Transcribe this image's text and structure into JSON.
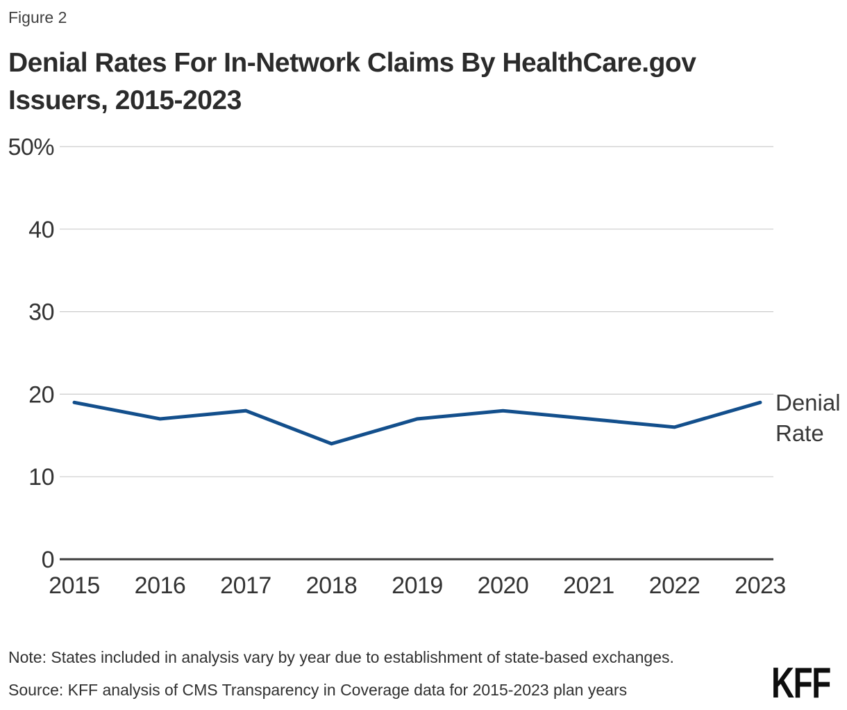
{
  "figure_label": "Figure 2",
  "title_lines": [
    "Denial Rates For In-Network Claims By HealthCare.gov",
    "Issuers, 2015-2023"
  ],
  "chart_data": {
    "type": "line",
    "title": "Denial Rates For In-Network Claims By HealthCare.gov Issuers, 2015-2023",
    "categories": [
      "2015",
      "2016",
      "2017",
      "2018",
      "2019",
      "2020",
      "2021",
      "2022",
      "2023"
    ],
    "series": [
      {
        "name": "Denial Rate",
        "values": [
          19,
          17,
          18,
          14,
          17,
          18,
          17,
          16,
          19
        ]
      }
    ],
    "xlabel": "",
    "ylabel": "",
    "ylim": [
      0,
      50
    ],
    "yticks": [
      {
        "value": 0,
        "label": "0"
      },
      {
        "value": 10,
        "label": "10"
      },
      {
        "value": 20,
        "label": "20"
      },
      {
        "value": 30,
        "label": "30"
      },
      {
        "value": 40,
        "label": "40"
      },
      {
        "value": 50,
        "label": "50%"
      }
    ],
    "grid": true,
    "legend_position": "right-of-line-end",
    "line_color": "#134f8c",
    "gridline_color": "#cccccc",
    "axis_color": "#3c3c3c",
    "tick_label_color": "#333333"
  },
  "note": "Note: States included in analysis vary by year due to establishment of state-based exchanges.",
  "source": "Source: KFF analysis of CMS Transparency in Coverage data for 2015-2023 plan years",
  "logo_text": "KFF"
}
